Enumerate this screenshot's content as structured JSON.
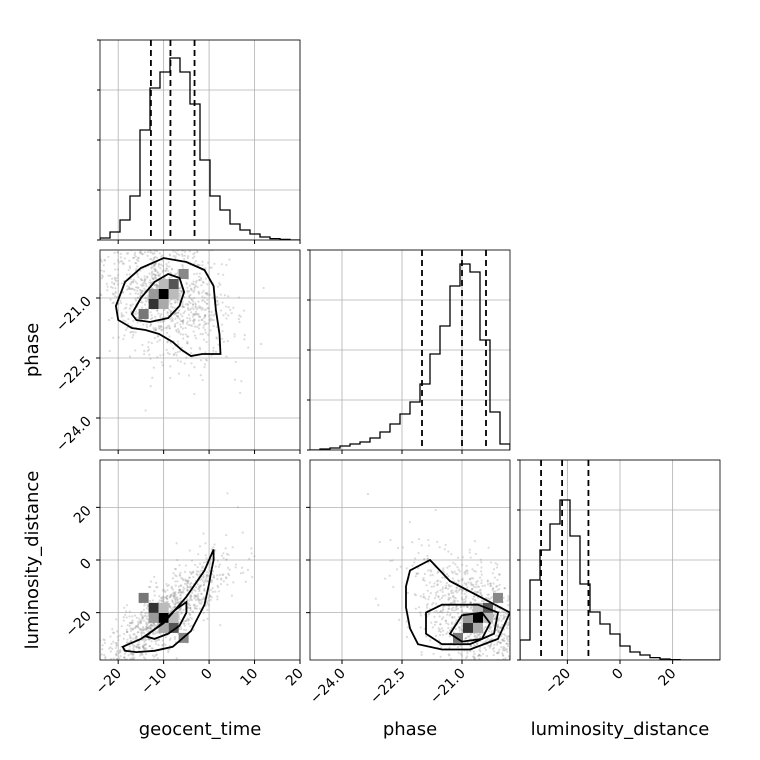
{
  "chart_data": {
    "type": "corner",
    "parameters": [
      "geocent_time",
      "phase",
      "luminosity_distance"
    ],
    "axis_labels": {
      "x": [
        "geocent_time",
        "phase",
        "luminosity_distance"
      ],
      "y": [
        "",
        "phase",
        "luminosity_distance"
      ]
    },
    "ranges": {
      "geocent_time": [
        -24,
        20
      ],
      "phase": [
        -24.8,
        -19.8
      ],
      "luminosity_distance": [
        -38,
        38
      ]
    },
    "ticks": {
      "geocent_time": [
        -20,
        -10,
        0,
        10,
        20
      ],
      "phase": [
        -24.0,
        -22.5,
        -21.0
      ],
      "luminosity_distance": [
        -20,
        0,
        20
      ]
    },
    "tick_labels": {
      "geocent_time": [
        "−20",
        "−10",
        "0",
        "10",
        "20"
      ],
      "phase": [
        "−24.0",
        "−22.5",
        "−21.0"
      ],
      "luminosity_distance": [
        "−20",
        "0",
        "20"
      ]
    },
    "quantiles": {
      "geocent_time": [
        -12.8,
        -8.5,
        -3.2
      ],
      "phase": [
        -22.0,
        -21.0,
        -20.4
      ],
      "luminosity_distance": [
        -30.0,
        -22.0,
        -12.0
      ]
    },
    "hist_ymax": 1.0,
    "hist_ticks": [
      0,
      0.25,
      0.5,
      0.75,
      1.0
    ],
    "histograms": {
      "geocent_time": {
        "edges": [
          -24,
          -21.8,
          -19.6,
          -17.4,
          -15.2,
          -13,
          -10.8,
          -8.6,
          -6.4,
          -4.2,
          -2,
          0.2,
          2.4,
          4.6,
          6.8,
          9,
          11.2,
          13.4,
          15.6,
          17.8,
          20
        ],
        "counts": [
          0.01,
          0.04,
          0.1,
          0.22,
          0.55,
          0.76,
          0.84,
          0.91,
          0.84,
          0.68,
          0.4,
          0.22,
          0.15,
          0.08,
          0.05,
          0.03,
          0.015,
          0.007,
          0.003,
          0.0
        ]
      },
      "phase": {
        "edges": [
          -24.8,
          -24.55,
          -24.3,
          -24.05,
          -23.8,
          -23.55,
          -23.3,
          -23.05,
          -22.8,
          -22.55,
          -22.3,
          -22.05,
          -21.8,
          -21.55,
          -21.3,
          -21.05,
          -20.8,
          -20.55,
          -20.3,
          -20.05,
          -19.8
        ],
        "counts": [
          0.0,
          0.005,
          0.01,
          0.02,
          0.03,
          0.04,
          0.06,
          0.09,
          0.13,
          0.18,
          0.24,
          0.33,
          0.48,
          0.62,
          0.82,
          0.93,
          0.89,
          0.55,
          0.19,
          0.03
        ]
      },
      "luminosity_distance": {
        "edges": [
          -38,
          -34.2,
          -30.4,
          -26.6,
          -22.8,
          -19,
          -15.2,
          -11.4,
          -7.6,
          -3.8,
          0,
          3.8,
          7.6,
          11.4,
          15.2,
          19,
          22.8,
          26.6,
          30.4,
          34.2,
          38
        ],
        "counts": [
          0.1,
          0.4,
          0.55,
          0.68,
          0.8,
          0.62,
          0.38,
          0.24,
          0.18,
          0.13,
          0.07,
          0.04,
          0.025,
          0.012,
          0.005,
          0.002,
          0.0,
          0.0,
          0.0,
          0.0
        ]
      }
    },
    "scatter_pairs": [
      {
        "x": "geocent_time",
        "y": "phase",
        "center": [
          -10.0,
          -20.9
        ],
        "contours": [
          [
            [
              -20.5,
              -21.2
            ],
            [
              -18.5,
              -20.6
            ],
            [
              -15,
              -20.25
            ],
            [
              -10,
              -20.0
            ],
            [
              -5,
              -20.1
            ],
            [
              -1,
              -20.3
            ],
            [
              1,
              -20.7
            ],
            [
              1.5,
              -21.3
            ],
            [
              2.3,
              -21.9
            ],
            [
              2.5,
              -22.4
            ],
            [
              -1.5,
              -22.4
            ],
            [
              -4,
              -22.45
            ],
            [
              -6,
              -22.3
            ],
            [
              -8,
              -22.1
            ],
            [
              -11,
              -21.9
            ],
            [
              -14,
              -21.8
            ],
            [
              -17,
              -21.75
            ],
            [
              -20,
              -21.55
            ]
          ],
          [
            [
              -17,
              -21.4
            ],
            [
              -15,
              -21.0
            ],
            [
              -12,
              -20.6
            ],
            [
              -9,
              -20.4
            ],
            [
              -6.5,
              -20.5
            ],
            [
              -5.5,
              -20.85
            ],
            [
              -6.5,
              -21.2
            ],
            [
              -9,
              -21.5
            ],
            [
              -13,
              -21.6
            ],
            [
              -16,
              -21.55
            ]
          ]
        ]
      },
      {
        "x": "geocent_time",
        "y": "luminosity_distance",
        "center": [
          -10.0,
          -22.0
        ],
        "contours": [
          [
            [
              -19,
              -33
            ],
            [
              -15,
              -30
            ],
            [
              -10,
              -24
            ],
            [
              -5,
              -14
            ],
            [
              -1,
              -4
            ],
            [
              1,
              4
            ],
            [
              1,
              0
            ],
            [
              0.5,
              -4
            ],
            [
              0,
              -9
            ],
            [
              -1,
              -17
            ],
            [
              -4,
              -27
            ],
            [
              -8,
              -33
            ],
            [
              -12,
              -34.5
            ],
            [
              -16,
              -35
            ],
            [
              -18.5,
              -34.5
            ]
          ],
          [
            [
              -14,
              -29
            ],
            [
              -11,
              -25
            ],
            [
              -7.5,
              -19
            ],
            [
              -5,
              -16
            ],
            [
              -5,
              -20
            ],
            [
              -6.5,
              -25
            ],
            [
              -9,
              -28
            ],
            [
              -12,
              -30
            ]
          ]
        ]
      },
      {
        "x": "phase",
        "y": "luminosity_distance",
        "center": [
          -20.6,
          -22.0
        ],
        "contours": [
          [
            [
              -22.3,
              -4
            ],
            [
              -22.4,
              -10
            ],
            [
              -22.4,
              -18
            ],
            [
              -22.3,
              -26
            ],
            [
              -22.1,
              -32
            ],
            [
              -21.5,
              -34
            ],
            [
              -20.8,
              -34
            ],
            [
              -20.1,
              -30
            ],
            [
              -19.8,
              -20
            ],
            [
              -20.3,
              -16
            ],
            [
              -21.3,
              -8
            ],
            [
              -21.8,
              0
            ]
          ],
          [
            [
              -21.9,
              -20
            ],
            [
              -21.9,
              -28
            ],
            [
              -21.5,
              -32
            ],
            [
              -20.8,
              -32
            ],
            [
              -20.2,
              -28
            ],
            [
              -20.1,
              -20
            ],
            [
              -20.6,
              -17
            ],
            [
              -21.5,
              -17
            ]
          ],
          [
            [
              -21.3,
              -28
            ],
            [
              -21.0,
              -31
            ],
            [
              -20.5,
              -30
            ],
            [
              -20.3,
              -24
            ],
            [
              -20.5,
              -20
            ],
            [
              -21.0,
              -21
            ]
          ]
        ]
      }
    ],
    "grid": true,
    "legend": "none"
  }
}
